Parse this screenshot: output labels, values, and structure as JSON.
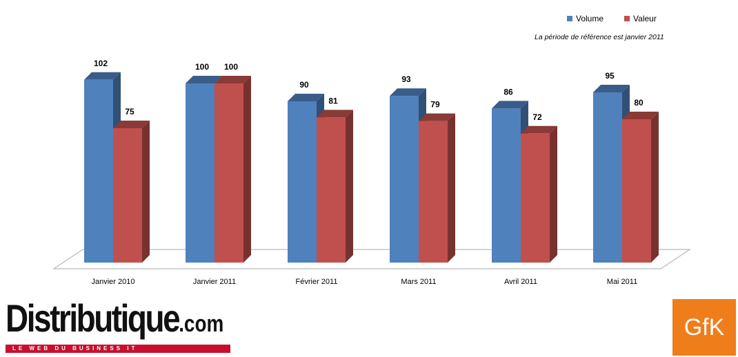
{
  "chart_data": {
    "type": "bar",
    "categories": [
      "Janvier 2010",
      "Janvier 2011",
      "Février 2011",
      "Mars 2011",
      "Avril 2011",
      "Mai 2011"
    ],
    "series": [
      {
        "name": "Volume",
        "values": [
          102,
          100,
          90,
          93,
          86,
          95
        ],
        "color": "#4f81bd"
      },
      {
        "name": "Valeur",
        "values": [
          75,
          100,
          81,
          79,
          72,
          80
        ],
        "color": "#c0504d"
      }
    ],
    "note": "La période de référence est janvier 2011",
    "ylim": [
      0,
      102
    ],
    "grid": false,
    "legend_position": "top-right",
    "style": "3d"
  },
  "legend": {
    "volume": "Volume",
    "valeur": "Valeur"
  },
  "logos": {
    "distributique": "Distributique",
    "distributique_suffix": ".com",
    "tagline": "LE WEB DU BUSINESS IT",
    "gfk": "GfK"
  }
}
